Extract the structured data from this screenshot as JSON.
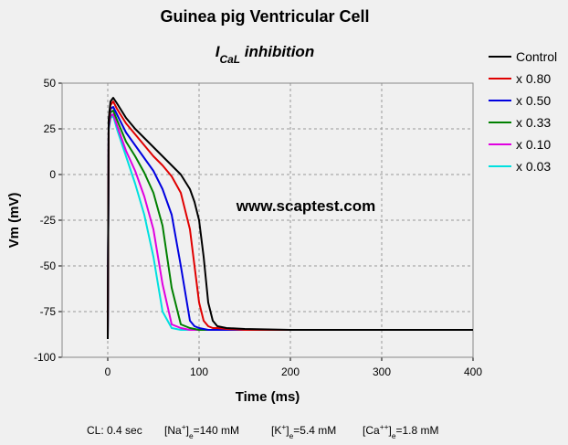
{
  "chart_data": {
    "type": "line",
    "title": "Guinea pig Ventricular Cell",
    "subtitle": [
      {
        "text": "I"
      },
      {
        "sub": "CaL"
      },
      {
        "text": " inhibition"
      }
    ],
    "annotation": "www.scaptest.com",
    "xlabel": "Time (ms)",
    "ylabel": "Vm (mV)",
    "xlim": [
      -50,
      400
    ],
    "xticks": [
      0,
      100,
      200,
      300,
      400
    ],
    "ylim": [
      -100,
      50
    ],
    "yticks": [
      -100,
      -75,
      -50,
      -25,
      0,
      25,
      50
    ],
    "grid": true,
    "legend": "right",
    "x": [
      0,
      1,
      3,
      6,
      10,
      20,
      30,
      40,
      50,
      60,
      70,
      80,
      90,
      95,
      100,
      105,
      110,
      115,
      120,
      130,
      150,
      200,
      300,
      400
    ],
    "series": [
      {
        "name": "Control",
        "color": "#000000",
        "values": [
          -90,
          30,
          40,
          42,
          39,
          31,
          25,
          20,
          15,
          10,
          5,
          0,
          -8,
          -15,
          -25,
          -45,
          -70,
          -80,
          -83,
          -84,
          -84.5,
          -85,
          -85,
          -85
        ]
      },
      {
        "name": "x 0.80",
        "color": "#e00000",
        "values": [
          -90,
          28,
          38,
          40,
          36,
          28,
          22,
          16,
          10,
          5,
          -1,
          -10,
          -30,
          -50,
          -70,
          -80,
          -83,
          -84,
          -84,
          -84.5,
          -85,
          -85,
          -85,
          -85
        ]
      },
      {
        "name": "x 0.50",
        "color": "#0000e0",
        "values": [
          -90,
          27,
          36,
          37,
          33,
          23,
          16,
          9,
          2,
          -8,
          -22,
          -50,
          -80,
          -83,
          -84,
          -84.5,
          -85,
          -85,
          -85,
          -85,
          -85,
          -85,
          -85,
          -85
        ]
      },
      {
        "name": "x 0.33",
        "color": "#008000",
        "values": [
          -90,
          26,
          34,
          35,
          30,
          18,
          10,
          1,
          -10,
          -28,
          -62,
          -82,
          -84,
          -84.5,
          -85,
          -85,
          -85,
          -85,
          -85,
          -85,
          -85,
          -85,
          -85,
          -85
        ]
      },
      {
        "name": "x 0.10",
        "color": "#e000e0",
        "values": [
          -90,
          25,
          32,
          33,
          27,
          13,
          2,
          -12,
          -30,
          -60,
          -82,
          -84,
          -85,
          -85,
          -85,
          -85,
          -85,
          -85,
          -85,
          -85,
          -85,
          -85,
          -85,
          -85
        ]
      },
      {
        "name": "x 0.03",
        "color": "#00e0e0",
        "values": [
          -90,
          24,
          31,
          32,
          25,
          10,
          -5,
          -22,
          -45,
          -75,
          -84,
          -85,
          -85,
          -85,
          -85,
          -85,
          -85,
          -85,
          -85,
          -85,
          -85,
          -85,
          -85,
          -85
        ]
      }
    ],
    "notes": [
      [
        {
          "text": "CL: 0.4 sec"
        }
      ],
      [
        {
          "text": "[Na"
        },
        {
          "sup": "+"
        },
        {
          "text": "]"
        },
        {
          "sub": "e"
        },
        {
          "text": "=140 mM"
        }
      ],
      [
        {
          "text": "[K"
        },
        {
          "sup": "+"
        },
        {
          "text": "]"
        },
        {
          "sub": "e"
        },
        {
          "text": "=5.4 mM"
        }
      ],
      [
        {
          "text": "[Ca"
        },
        {
          "sup": "++"
        },
        {
          "text": "]"
        },
        {
          "sub": "e"
        },
        {
          "text": "=1.8 mM"
        }
      ]
    ]
  }
}
